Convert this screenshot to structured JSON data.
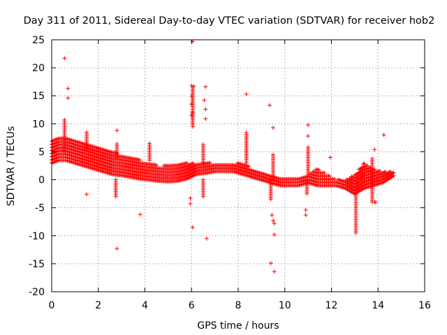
{
  "chart_data": {
    "type": "scatter",
    "title": "Day 311 of 2011, Sidereal Day-to-day VTEC variation (SDTVAR) for receiver hob2",
    "xlabel": "GPS time / hours",
    "ylabel": "SDTVAR / TECUs",
    "xlim": [
      0,
      16
    ],
    "ylim": [
      -20,
      25
    ],
    "xticks": [
      0,
      2,
      4,
      6,
      8,
      10,
      12,
      14,
      16
    ],
    "yticks": [
      -20,
      -15,
      -10,
      -5,
      0,
      5,
      10,
      15,
      20,
      25
    ],
    "grid": true,
    "marker": "+",
    "color": "#ff0000",
    "band": {
      "x": [
        0.0,
        0.3,
        0.6,
        1.0,
        1.4,
        1.8,
        2.2,
        2.6,
        3.0,
        3.4,
        3.8,
        4.2,
        4.6,
        5.0,
        5.4,
        5.8,
        6.2,
        6.6,
        7.0,
        7.4,
        7.8,
        8.2,
        8.6,
        9.0,
        9.4,
        9.8,
        10.2,
        10.6,
        11.0,
        11.4,
        11.8,
        12.2,
        12.6,
        13.0,
        13.4,
        13.8,
        14.2,
        14.7
      ],
      "low": [
        3.0,
        3.5,
        3.5,
        3.0,
        2.5,
        2.0,
        1.5,
        1.0,
        0.8,
        0.5,
        0.2,
        0.0,
        -0.2,
        -0.3,
        -0.2,
        0.2,
        1.0,
        1.2,
        1.5,
        1.5,
        1.5,
        1.0,
        0.5,
        0.0,
        -0.5,
        -1.0,
        -1.0,
        -1.0,
        -0.5,
        -1.0,
        -1.0,
        -1.0,
        -1.5,
        -2.5,
        -1.5,
        -1.0,
        -0.5,
        0.8
      ],
      "high": [
        7.0,
        7.5,
        7.5,
        7.0,
        6.5,
        6.0,
        5.5,
        5.0,
        4.5,
        4.0,
        3.5,
        3.0,
        2.5,
        2.5,
        2.8,
        3.0,
        3.0,
        3.0,
        3.0,
        3.0,
        3.0,
        3.0,
        2.0,
        1.5,
        1.0,
        0.5,
        0.5,
        0.5,
        1.0,
        2.0,
        1.0,
        0.0,
        0.0,
        1.0,
        3.0,
        2.0,
        1.5,
        1.5
      ]
    },
    "spikes": [
      {
        "x": 0.55,
        "from": 5.0,
        "to": 11.0
      },
      {
        "x": 1.5,
        "from": 5.5,
        "to": 8.5
      },
      {
        "x": 2.8,
        "from": 4.0,
        "to": 6.5
      },
      {
        "x": 2.75,
        "from": -3.0,
        "to": 0.0
      },
      {
        "x": 4.2,
        "from": 3.5,
        "to": 6.5
      },
      {
        "x": 6.05,
        "from": 9.5,
        "to": 16.5
      },
      {
        "x": 6.5,
        "from": 3.0,
        "to": 6.5
      },
      {
        "x": 6.5,
        "from": -3.0,
        "to": 0.0
      },
      {
        "x": 8.35,
        "from": 3.0,
        "to": 8.5
      },
      {
        "x": 9.4,
        "from": -3.5,
        "to": 0.0
      },
      {
        "x": 9.5,
        "from": 0.0,
        "to": 4.5
      },
      {
        "x": 10.95,
        "from": -2.5,
        "to": 0.0
      },
      {
        "x": 11.0,
        "from": 1.0,
        "to": 6.0
      },
      {
        "x": 13.05,
        "from": -9.5,
        "to": -1.0
      },
      {
        "x": 13.75,
        "from": -4.0,
        "to": 4.0
      }
    ],
    "outliers": [
      [
        0.55,
        21.7
      ],
      [
        0.7,
        16.3
      ],
      [
        0.7,
        14.6
      ],
      [
        1.5,
        -2.6
      ],
      [
        2.8,
        8.8
      ],
      [
        2.8,
        -12.3
      ],
      [
        3.8,
        -6.2
      ],
      [
        6.05,
        24.7
      ],
      [
        6.0,
        16.8
      ],
      [
        6.1,
        16.7
      ],
      [
        6.0,
        14.9
      ],
      [
        6.05,
        14.3
      ],
      [
        6.0,
        13.5
      ],
      [
        6.0,
        11.5
      ],
      [
        6.05,
        12.0
      ],
      [
        5.95,
        -3.3
      ],
      [
        5.95,
        -4.3
      ],
      [
        6.05,
        -8.5
      ],
      [
        6.6,
        16.6
      ],
      [
        6.55,
        14.2
      ],
      [
        6.6,
        12.6
      ],
      [
        6.6,
        10.9
      ],
      [
        6.65,
        -10.5
      ],
      [
        8.35,
        15.3
      ],
      [
        9.35,
        13.3
      ],
      [
        9.5,
        9.3
      ],
      [
        9.45,
        -6.3
      ],
      [
        9.5,
        -7.3
      ],
      [
        9.55,
        -7.8
      ],
      [
        9.55,
        -9.8
      ],
      [
        9.4,
        -14.9
      ],
      [
        9.55,
        -16.4
      ],
      [
        10.9,
        -5.4
      ],
      [
        10.9,
        -6.3
      ],
      [
        11.0,
        9.8
      ],
      [
        11.0,
        7.8
      ],
      [
        11.95,
        4.0
      ],
      [
        13.85,
        5.4
      ],
      [
        13.85,
        -4.0
      ],
      [
        13.9,
        -4.0
      ],
      [
        14.25,
        8.0
      ]
    ]
  }
}
